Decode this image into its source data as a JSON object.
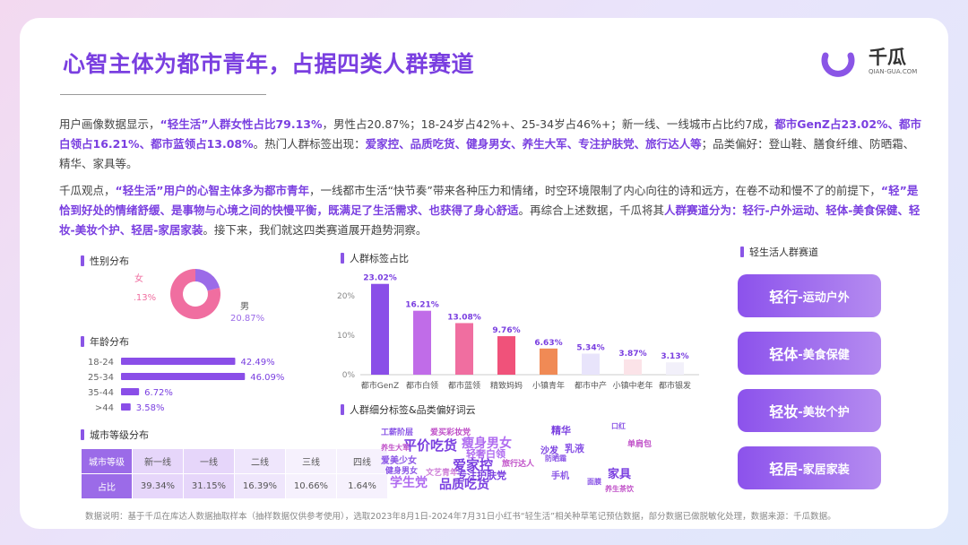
{
  "title": "心智主体为都市青年，占据四类人群赛道",
  "logo": {
    "name": "千瓜",
    "url": "QIAN-GUA.COM"
  },
  "paragraph1": [
    {
      "t": "用户画像数据显示，",
      "b": false
    },
    {
      "t": "“轻生活”人群女性占比79.13%",
      "b": true
    },
    {
      "t": "，男性占20.87%；18-24岁占42%+、25-34岁占46%+；新一线、一线城市占比约7成，",
      "b": false
    },
    {
      "t": "都市GenZ占23.02%、都市白领占16.21%、都市蓝领占13.08%",
      "b": true
    },
    {
      "t": "。热门人群标签出现：",
      "b": false
    },
    {
      "t": "爱家控、品质吃货、健身男女、养生大军、专注护肤党、旅行达人等",
      "b": true
    },
    {
      "t": "；品类偏好：登山鞋、膳食纤维、防晒霜、精华、家具等。",
      "b": false
    }
  ],
  "paragraph2": [
    {
      "t": "千瓜观点，",
      "b": false
    },
    {
      "t": "“轻生活”用户的心智主体多为都市青年",
      "b": true
    },
    {
      "t": "，一线都市生活“快节奏”带来各种压力和情绪，时空环境限制了内心向往的诗和远方，在卷不动和慢不了的前提下，",
      "b": false
    },
    {
      "t": "“轻”是恰到好处的情绪舒缓、是事物与心境之间的快慢平衡，既满足了生活需求、也获得了身心舒适",
      "b": true
    },
    {
      "t": "。再综合上述数据，千瓜将其",
      "b": false
    },
    {
      "t": "人群赛道分为：轻行-户外运动、轻体-美食保健、轻妆-美妆个护、轻居-家居家装",
      "b": true
    },
    {
      "t": "。接下来，我们就这四类赛道展开趋势洞察。",
      "b": false
    }
  ],
  "gender": {
    "title": "性别分布",
    "female_label": "女",
    "female_value": "79.13%",
    "female": 79.13,
    "male_label": "男",
    "male_value": "20.87%",
    "male": 20.87,
    "female_color": "#f06ea0",
    "male_color": "#9b6be8"
  },
  "age": {
    "title": "年龄分布",
    "rows": [
      {
        "label": "18-24",
        "value": 42.49,
        "text": "42.49%"
      },
      {
        "label": "25-34",
        "value": 46.09,
        "text": "46.09%"
      },
      {
        "label": "35-44",
        "value": 6.72,
        "text": "6.72%"
      },
      {
        "label": ">44",
        "value": 3.58,
        "text": "3.58%"
      }
    ]
  },
  "city": {
    "title": "城市等级分布",
    "header": [
      "城市等级",
      "新一线",
      "一线",
      "二线",
      "三线",
      "四线"
    ],
    "values": [
      "占比",
      "39.34%",
      "31.15%",
      "16.39%",
      "10.66%",
      "1.64%"
    ]
  },
  "chart_data": {
    "type": "bar",
    "title": "人群标签占比",
    "categories": [
      "都市GenZ",
      "都市白领",
      "都市蓝领",
      "精致妈妈",
      "小镇青年",
      "都市中产",
      "小镇中老年",
      "都市银发"
    ],
    "values": [
      23.02,
      16.21,
      13.08,
      9.76,
      6.63,
      5.34,
      3.87,
      3.13
    ],
    "value_labels": [
      "23.02%",
      "16.21%",
      "13.08%",
      "9.76%",
      "6.63%",
      "5.34%",
      "3.87%",
      "3.13%"
    ],
    "colors": [
      "#8a4ee8",
      "#c06ce8",
      "#f06ea0",
      "#f0527a",
      "#f08a55",
      "#e8e4fb",
      "#fbe3e8",
      "#f2f0fa"
    ],
    "yticks": [
      "0%",
      "10%",
      "20%"
    ],
    "ylim": [
      0,
      25
    ]
  },
  "wordcloud_title": "人群细分标签&品类偏好词云",
  "wordcloud": [
    {
      "t": "工薪阶层",
      "c": "#8a55e6",
      "s": 9
    },
    {
      "t": "爱买彩妆党",
      "c": "#c050c8",
      "s": 9
    },
    {
      "t": "平价吃货",
      "c": "#7a3fe0",
      "s": 15
    },
    {
      "t": "瘦身男女",
      "c": "#b06cf0",
      "s": 14
    },
    {
      "t": "养生大军",
      "c": "#c050c8",
      "s": 8
    },
    {
      "t": "轻奢白领",
      "c": "#b06cf0",
      "s": 11
    },
    {
      "t": "爱美少女",
      "c": "#8a55e6",
      "s": 10
    },
    {
      "t": "爱家控",
      "c": "#7a3fe0",
      "s": 15
    },
    {
      "t": "旅行达人",
      "c": "#c050c8",
      "s": 9
    },
    {
      "t": "健身男女",
      "c": "#8a55e6",
      "s": 9
    },
    {
      "t": "文艺青年",
      "c": "#d080d8",
      "s": 9
    },
    {
      "t": "专注护肤党",
      "c": "#7a3fe0",
      "s": 11
    },
    {
      "t": "学生党",
      "c": "#b06cf0",
      "s": 14
    },
    {
      "t": "品质吃货",
      "c": "#7a3fe0",
      "s": 14
    },
    {
      "t": "精华",
      "c": "#7a3fe0",
      "s": 11
    },
    {
      "t": "口红",
      "c": "#8a55e6",
      "s": 8
    },
    {
      "t": "沙发",
      "c": "#7a3fe0",
      "s": 10
    },
    {
      "t": "乳液",
      "c": "#8a55e6",
      "s": 11
    },
    {
      "t": "单肩包",
      "c": "#c050c8",
      "s": 9
    },
    {
      "t": "防晒霜",
      "c": "#8a55e6",
      "s": 8
    },
    {
      "t": "手机",
      "c": "#8a55e6",
      "s": 10
    },
    {
      "t": "家具",
      "c": "#7a3fe0",
      "s": 13
    },
    {
      "t": "面膜",
      "c": "#8a55e6",
      "s": 8
    },
    {
      "t": "养生茶饮",
      "c": "#c050c8",
      "s": 8
    }
  ],
  "tracks_title": "轻生活人群赛道",
  "tracks": [
    {
      "main": "轻行",
      "sub": "-运动户外"
    },
    {
      "main": "轻体",
      "sub": "-美食保健"
    },
    {
      "main": "轻妆",
      "sub": "-美妆个护"
    },
    {
      "main": "轻居",
      "sub": "-家居家装"
    }
  ],
  "footnote": "数据说明：基于千瓜在库达人数据抽取样本（抽样数据仅供参考使用），选取2023年8月1日-2024年7月31日小红书“轻生活”相关种草笔记预估数据，部分数据已做脱敏化处理，数据来源：千瓜数据。",
  "watermark": "千瓜"
}
